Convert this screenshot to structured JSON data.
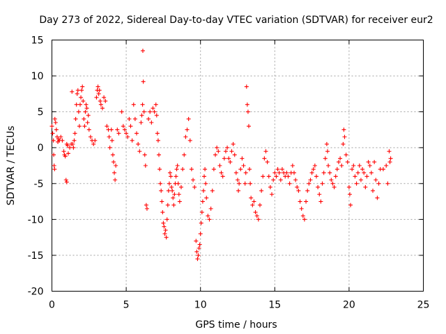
{
  "chart_data": {
    "type": "scatter",
    "title": "Day 273 of 2022, Sidereal Day-to-day VTEC variation (SDTVAR) for receiver eur2",
    "xlabel": "GPS time / hours",
    "ylabel": "SDTVAR / TECUs",
    "xlim": [
      0,
      25
    ],
    "ylim": [
      -20,
      15
    ],
    "xticks": [
      0,
      5,
      10,
      15,
      20,
      25
    ],
    "yticks": [
      -20,
      -15,
      -10,
      -5,
      0,
      5,
      10,
      15
    ],
    "xtick_labels": [
      "0",
      "5",
      "10",
      "15",
      "20",
      "25"
    ],
    "ytick_labels": [
      "-20",
      "-15",
      "-10",
      "-5",
      "0",
      "5",
      "10",
      "15"
    ],
    "grid": true,
    "marker": "+",
    "color": "#ff0000",
    "series": [
      {
        "name": "eur2",
        "points": [
          [
            0.0,
            3.0
          ],
          [
            0.05,
            2.0
          ],
          [
            0.1,
            1.0
          ],
          [
            0.12,
            -1.0
          ],
          [
            0.15,
            -2.5
          ],
          [
            0.18,
            -3.0
          ],
          [
            0.2,
            4.0
          ],
          [
            0.25,
            3.5
          ],
          [
            0.3,
            2.5
          ],
          [
            0.35,
            1.5
          ],
          [
            0.4,
            0.8
          ],
          [
            0.45,
            1.2
          ],
          [
            0.5,
            1.0
          ],
          [
            0.6,
            1.5
          ],
          [
            0.7,
            1.0
          ],
          [
            0.8,
            -0.5
          ],
          [
            0.85,
            -1.0
          ],
          [
            0.9,
            -1.2
          ],
          [
            0.95,
            -4.5
          ],
          [
            1.0,
            -4.8
          ],
          [
            1.0,
            0.5
          ],
          [
            1.05,
            0.3
          ],
          [
            1.1,
            -0.8
          ],
          [
            1.2,
            0.0
          ],
          [
            1.3,
            0.5
          ],
          [
            1.35,
            7.8
          ],
          [
            1.4,
            0.5
          ],
          [
            1.45,
            0.0
          ],
          [
            1.5,
            1.0
          ],
          [
            1.55,
            2.0
          ],
          [
            1.6,
            4.0
          ],
          [
            1.65,
            6.0
          ],
          [
            1.7,
            7.5
          ],
          [
            1.75,
            8.0
          ],
          [
            1.8,
            5.0
          ],
          [
            1.85,
            3.0
          ],
          [
            1.9,
            6.0
          ],
          [
            1.95,
            7.0
          ],
          [
            2.0,
            8.0
          ],
          [
            2.05,
            8.5
          ],
          [
            2.1,
            6.5
          ],
          [
            2.15,
            4.0
          ],
          [
            2.2,
            3.0
          ],
          [
            2.25,
            5.0
          ],
          [
            2.3,
            6.0
          ],
          [
            2.35,
            5.5
          ],
          [
            2.4,
            3.5
          ],
          [
            2.45,
            4.5
          ],
          [
            2.5,
            2.5
          ],
          [
            2.6,
            1.5
          ],
          [
            2.7,
            1.0
          ],
          [
            2.8,
            0.5
          ],
          [
            2.9,
            1.0
          ],
          [
            3.0,
            7.0
          ],
          [
            3.05,
            8.0
          ],
          [
            3.1,
            8.5
          ],
          [
            3.15,
            7.5
          ],
          [
            3.2,
            8.0
          ],
          [
            3.25,
            6.5
          ],
          [
            3.3,
            6.0
          ],
          [
            3.4,
            5.5
          ],
          [
            3.5,
            7.0
          ],
          [
            3.6,
            6.5
          ],
          [
            3.7,
            3.0
          ],
          [
            3.8,
            2.5
          ],
          [
            3.85,
            1.5
          ],
          [
            3.9,
            0.0
          ],
          [
            4.0,
            2.5
          ],
          [
            4.05,
            1.0
          ],
          [
            4.1,
            -1.0
          ],
          [
            4.15,
            -2.0
          ],
          [
            4.2,
            -3.5
          ],
          [
            4.25,
            -4.5
          ],
          [
            4.3,
            -2.5
          ],
          [
            4.4,
            2.5
          ],
          [
            4.5,
            2.0
          ],
          [
            4.7,
            5.0
          ],
          [
            4.8,
            3.0
          ],
          [
            4.9,
            2.5
          ],
          [
            5.0,
            2.0
          ],
          [
            5.1,
            1.5
          ],
          [
            5.2,
            4.0
          ],
          [
            5.3,
            3.0
          ],
          [
            5.4,
            1.0
          ],
          [
            5.5,
            6.0
          ],
          [
            5.6,
            4.0
          ],
          [
            5.7,
            2.0
          ],
          [
            5.8,
            0.5
          ],
          [
            5.9,
            -0.5
          ],
          [
            6.0,
            3.5
          ],
          [
            6.05,
            4.5
          ],
          [
            6.1,
            6.0
          ],
          [
            6.12,
            13.5
          ],
          [
            6.15,
            9.2
          ],
          [
            6.2,
            5.0
          ],
          [
            6.25,
            -1.0
          ],
          [
            6.3,
            -2.5
          ],
          [
            6.35,
            -8.0
          ],
          [
            6.4,
            -8.5
          ],
          [
            6.5,
            4.0
          ],
          [
            6.6,
            5.0
          ],
          [
            6.7,
            3.5
          ],
          [
            6.8,
            5.5
          ],
          [
            6.9,
            5.0
          ],
          [
            7.0,
            6.0
          ],
          [
            7.05,
            4.5
          ],
          [
            7.1,
            2.0
          ],
          [
            7.15,
            1.0
          ],
          [
            7.2,
            -1.0
          ],
          [
            7.25,
            -3.0
          ],
          [
            7.3,
            -5.0
          ],
          [
            7.35,
            -6.0
          ],
          [
            7.4,
            -7.5
          ],
          [
            7.45,
            -9.0
          ],
          [
            7.5,
            -10.5
          ],
          [
            7.55,
            -11.0
          ],
          [
            7.6,
            -12.0
          ],
          [
            7.65,
            -11.5
          ],
          [
            7.7,
            -12.5
          ],
          [
            7.75,
            -10.0
          ],
          [
            7.8,
            -8.0
          ],
          [
            7.85,
            -6.0
          ],
          [
            7.9,
            -5.0
          ],
          [
            7.95,
            -3.5
          ],
          [
            8.0,
            -4.0
          ],
          [
            8.05,
            -5.5
          ],
          [
            8.1,
            -6.0
          ],
          [
            8.15,
            -7.0
          ],
          [
            8.2,
            -8.0
          ],
          [
            8.25,
            -6.5
          ],
          [
            8.3,
            -5.0
          ],
          [
            8.35,
            -4.0
          ],
          [
            8.4,
            -3.0
          ],
          [
            8.45,
            -2.5
          ],
          [
            8.5,
            -5.0
          ],
          [
            8.55,
            -6.5
          ],
          [
            8.6,
            -7.5
          ],
          [
            8.7,
            -5.5
          ],
          [
            8.8,
            -3.0
          ],
          [
            8.9,
            -1.0
          ],
          [
            9.0,
            1.5
          ],
          [
            9.1,
            2.5
          ],
          [
            9.2,
            4.0
          ],
          [
            9.3,
            1.0
          ],
          [
            9.4,
            -3.0
          ],
          [
            9.5,
            -4.5
          ],
          [
            9.6,
            -5.5
          ],
          [
            9.7,
            -13.0
          ],
          [
            9.75,
            -14.5
          ],
          [
            9.8,
            -15.5
          ],
          [
            9.85,
            -15.0
          ],
          [
            9.9,
            -14.0
          ],
          [
            9.95,
            -13.5
          ],
          [
            10.0,
            -12.0
          ],
          [
            10.05,
            -10.5
          ],
          [
            10.1,
            -9.0
          ],
          [
            10.15,
            -7.5
          ],
          [
            10.2,
            -6.0
          ],
          [
            10.25,
            -4.0
          ],
          [
            10.3,
            -3.0
          ],
          [
            10.35,
            -5.0
          ],
          [
            10.4,
            -7.0
          ],
          [
            10.5,
            -9.5
          ],
          [
            10.6,
            -10.0
          ],
          [
            10.7,
            -8.5
          ],
          [
            10.8,
            -6.0
          ],
          [
            10.9,
            -3.0
          ],
          [
            11.0,
            -1.0
          ],
          [
            11.1,
            0.0
          ],
          [
            11.2,
            -0.5
          ],
          [
            11.3,
            -2.5
          ],
          [
            11.4,
            -3.5
          ],
          [
            11.5,
            -4.0
          ],
          [
            11.6,
            -1.5
          ],
          [
            11.7,
            -0.5
          ],
          [
            11.8,
            0.0
          ],
          [
            11.9,
            -1.5
          ],
          [
            12.0,
            -2.0
          ],
          [
            12.1,
            -0.5
          ],
          [
            12.2,
            0.5
          ],
          [
            12.3,
            -1.0
          ],
          [
            12.4,
            -3.5
          ],
          [
            12.5,
            -4.5
          ],
          [
            12.55,
            -6.0
          ],
          [
            12.6,
            -5.0
          ],
          [
            12.7,
            -3.0
          ],
          [
            12.8,
            -1.5
          ],
          [
            12.9,
            -2.5
          ],
          [
            13.0,
            -5.0
          ],
          [
            13.05,
            -3.5
          ],
          [
            13.1,
            8.5
          ],
          [
            13.15,
            6.0
          ],
          [
            13.2,
            5.0
          ],
          [
            13.25,
            3.0
          ],
          [
            13.3,
            -3.0
          ],
          [
            13.35,
            -5.0
          ],
          [
            13.4,
            -7.0
          ],
          [
            13.5,
            -8.0
          ],
          [
            13.6,
            -7.5
          ],
          [
            13.7,
            -9.0
          ],
          [
            13.8,
            -9.5
          ],
          [
            13.9,
            -10.0
          ],
          [
            14.0,
            -8.0
          ],
          [
            14.1,
            -6.0
          ],
          [
            14.2,
            -4.0
          ],
          [
            14.3,
            -1.5
          ],
          [
            14.4,
            -0.5
          ],
          [
            14.5,
            -2.0
          ],
          [
            14.6,
            -4.0
          ],
          [
            14.7,
            -5.5
          ],
          [
            14.8,
            -6.5
          ],
          [
            14.9,
            -4.5
          ],
          [
            15.0,
            -3.5
          ],
          [
            15.1,
            -4.0
          ],
          [
            15.2,
            -3.0
          ],
          [
            15.3,
            -3.5
          ],
          [
            15.4,
            -4.5
          ],
          [
            15.5,
            -3.0
          ],
          [
            15.6,
            -3.5
          ],
          [
            15.7,
            -4.0
          ],
          [
            15.8,
            -3.5
          ],
          [
            15.9,
            -4.0
          ],
          [
            16.0,
            -5.0
          ],
          [
            16.1,
            -3.5
          ],
          [
            16.2,
            -2.5
          ],
          [
            16.3,
            -3.5
          ],
          [
            16.4,
            -4.5
          ],
          [
            16.5,
            -5.5
          ],
          [
            16.6,
            -6.0
          ],
          [
            16.7,
            -7.5
          ],
          [
            16.8,
            -8.5
          ],
          [
            16.9,
            -9.5
          ],
          [
            17.0,
            -10.0
          ],
          [
            17.1,
            -7.5
          ],
          [
            17.2,
            -6.0
          ],
          [
            17.3,
            -5.0
          ],
          [
            17.4,
            -4.5
          ],
          [
            17.5,
            -3.5
          ],
          [
            17.6,
            -3.0
          ],
          [
            17.7,
            -2.5
          ],
          [
            17.8,
            -4.0
          ],
          [
            17.9,
            -5.5
          ],
          [
            18.0,
            -6.5
          ],
          [
            18.1,
            -7.5
          ],
          [
            18.2,
            -5.0
          ],
          [
            18.3,
            -3.5
          ],
          [
            18.4,
            -1.5
          ],
          [
            18.5,
            0.5
          ],
          [
            18.55,
            -0.5
          ],
          [
            18.6,
            -2.5
          ],
          [
            18.7,
            -3.5
          ],
          [
            18.8,
            -4.5
          ],
          [
            18.9,
            -5.0
          ],
          [
            19.0,
            -5.5
          ],
          [
            19.1,
            -4.0
          ],
          [
            19.2,
            -3.0
          ],
          [
            19.3,
            -2.0
          ],
          [
            19.4,
            -1.5
          ],
          [
            19.5,
            -2.5
          ],
          [
            19.6,
            0.5
          ],
          [
            19.65,
            2.5
          ],
          [
            19.7,
            1.5
          ],
          [
            19.8,
            -1.0
          ],
          [
            19.9,
            -2.0
          ],
          [
            20.0,
            -5.5
          ],
          [
            20.05,
            -6.5
          ],
          [
            20.1,
            -8.0
          ],
          [
            20.2,
            -3.0
          ],
          [
            20.3,
            -2.5
          ],
          [
            20.4,
            -4.0
          ],
          [
            20.5,
            -5.0
          ],
          [
            20.6,
            -3.5
          ],
          [
            20.7,
            -2.5
          ],
          [
            20.8,
            -4.5
          ],
          [
            20.9,
            -3.0
          ],
          [
            21.0,
            -3.5
          ],
          [
            21.1,
            -5.5
          ],
          [
            21.2,
            -4.0
          ],
          [
            21.3,
            -2.0
          ],
          [
            21.4,
            -2.5
          ],
          [
            21.5,
            -3.5
          ],
          [
            21.6,
            -6.0
          ],
          [
            21.7,
            -2.0
          ],
          [
            21.8,
            -4.5
          ],
          [
            21.9,
            -7.0
          ],
          [
            22.0,
            -5.0
          ],
          [
            22.1,
            -3.0
          ],
          [
            22.3,
            -3.0
          ],
          [
            22.5,
            -2.5
          ],
          [
            22.6,
            -5.0
          ],
          [
            22.7,
            -0.5
          ],
          [
            22.75,
            -2.0
          ],
          [
            22.8,
            -1.5
          ]
        ]
      }
    ]
  }
}
